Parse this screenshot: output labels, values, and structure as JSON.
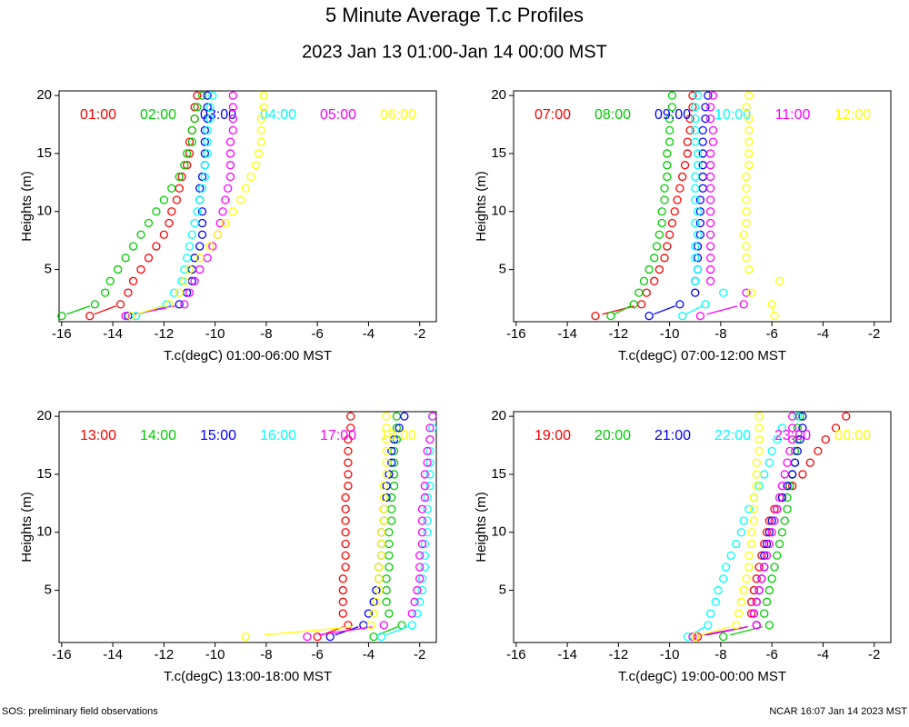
{
  "title": "5 Minute Average T.c Profiles",
  "subtitle": "2023 Jan 13 01:00-Jan 14 00:00 MST",
  "footer_left": "SOS: preliminary field observations",
  "footer_right": "NCAR 16:07 Jan 14 2023 MST",
  "chart_data": [
    {
      "type": "scatter",
      "xlabel": "T.c(degC) 01:00-06:00 MST",
      "ylabel": "Heights (m)",
      "xlim": [
        -16.1,
        -1.35
      ],
      "ylim": [
        0.5,
        20.4
      ],
      "xticks": [
        -16,
        -14,
        -12,
        -10,
        -8,
        -6,
        -4,
        -2
      ],
      "yticks": [
        5,
        10,
        15,
        20
      ],
      "y": [
        1,
        2,
        3,
        4,
        5,
        6,
        7,
        8,
        9,
        10,
        11,
        12,
        13,
        14,
        15,
        16,
        17,
        18,
        19,
        20
      ],
      "series": [
        {
          "name": "01:00",
          "color": "#ff0000",
          "x": [
            -14.9,
            -13.7,
            -13.4,
            -13.2,
            -12.9,
            -12.6,
            -12.3,
            -12.0,
            -11.8,
            -11.7,
            -11.5,
            -11.4,
            -11.3,
            -11.1,
            -11.0,
            -11.0,
            -10.9,
            -10.8,
            -10.8,
            -10.7
          ]
        },
        {
          "name": "02:00",
          "color": "#00cc00",
          "x": [
            -16.0,
            -14.7,
            -14.3,
            -14.1,
            -13.8,
            -13.5,
            -13.2,
            -12.9,
            -12.6,
            -12.3,
            -12.0,
            -11.7,
            -11.4,
            -11.2,
            -11.1,
            -10.9,
            -10.9,
            -10.8,
            -10.7,
            -10.5
          ]
        },
        {
          "name": "03:00",
          "color": "#0000ff",
          "x": [
            -13.4,
            -11.4,
            -11.1,
            -10.9,
            -10.9,
            -10.8,
            -10.6,
            -10.5,
            -10.5,
            -10.5,
            -10.6,
            -10.6,
            -10.5,
            -10.4,
            -10.4,
            -10.4,
            -10.4,
            -10.3,
            -10.3,
            -10.3
          ]
        },
        {
          "name": "04:00",
          "color": "#00ffff",
          "x": [
            -13.1,
            -11.9,
            -11.6,
            -11.3,
            -11.2,
            -11.1,
            -11.0,
            -10.9,
            -10.8,
            -10.7,
            -10.6,
            -10.5,
            -10.4,
            -10.4,
            -10.3,
            -10.3,
            -10.3,
            -10.2,
            -10.2,
            -10.1
          ]
        },
        {
          "name": "05:00",
          "color": "#ff00ff",
          "x": [
            -13.5,
            -11.2,
            -11.0,
            -10.8,
            -10.6,
            -10.3,
            -10.1,
            -9.9,
            -9.8,
            -9.7,
            -9.6,
            -9.5,
            -9.4,
            -9.4,
            -9.4,
            -9.4,
            -9.3,
            -9.3,
            -9.3,
            -9.3
          ]
        },
        {
          "name": "06:00",
          "color": "#ffff00",
          "x": [
            -13.3,
            -11.8,
            -11.4,
            -11.2,
            -11.0,
            -10.6,
            -10.2,
            -9.9,
            -9.6,
            -9.3,
            -9.0,
            -8.8,
            -8.6,
            -8.4,
            -8.3,
            -8.2,
            -8.2,
            -8.2,
            -8.1,
            -8.1
          ]
        }
      ]
    },
    {
      "type": "scatter",
      "xlabel": "T.c(degC) 07:00-12:00 MST",
      "ylabel": "Heights (m)",
      "xlim": [
        -16.1,
        -1.35
      ],
      "ylim": [
        0.5,
        20.4
      ],
      "xticks": [
        -16,
        -14,
        -12,
        -10,
        -8,
        -6,
        -4,
        -2
      ],
      "yticks": [
        5,
        10,
        15,
        20
      ],
      "y": [
        1,
        2,
        3,
        4,
        5,
        6,
        7,
        8,
        9,
        10,
        11,
        12,
        13,
        14,
        15,
        16,
        17,
        18,
        19,
        20
      ],
      "series": [
        {
          "name": "07:00",
          "color": "#ff0000",
          "x": [
            -12.9,
            -11.1,
            -10.9,
            -10.6,
            -10.4,
            -10.2,
            -10.1,
            -10.0,
            -9.9,
            -9.8,
            -9.7,
            -9.6,
            -9.5,
            -9.4,
            -9.3,
            -9.3,
            -9.2,
            -9.2,
            -9.1,
            -9.1
          ]
        },
        {
          "name": "08:00",
          "color": "#00cc00",
          "x": [
            -12.3,
            -11.4,
            -11.2,
            -11.0,
            -10.8,
            -10.6,
            -10.5,
            -10.4,
            -10.3,
            -10.3,
            -10.2,
            -10.2,
            -10.1,
            -10.1,
            -10.1,
            -10.0,
            -10.0,
            -10.0,
            -9.9,
            -9.9
          ]
        },
        {
          "name": "09:00",
          "color": "#0000ff",
          "x": [
            -10.8,
            -9.6,
            -9.0,
            -9.0,
            -8.9,
            -8.9,
            -8.9,
            -8.8,
            -8.8,
            -8.8,
            -8.8,
            -8.7,
            -8.7,
            -8.7,
            -8.7,
            -8.7,
            -8.7,
            -8.6,
            -8.6,
            -8.5
          ]
        },
        {
          "name": "10:00",
          "color": "#00ffff",
          "x": [
            -9.5,
            -8.6,
            -7.9,
            -9.0,
            -8.9,
            -9.0,
            -9.0,
            -8.9,
            -9.0,
            -8.9,
            -9.0,
            -9.0,
            -9.0,
            -8.9,
            -8.9,
            -9.0,
            -9.0,
            -9.0,
            -9.0,
            -8.9
          ]
        },
        {
          "name": "11:00",
          "color": "#ff00ff",
          "x": [
            -8.8,
            -7.1,
            -7.0,
            -8.4,
            -8.4,
            -8.4,
            -8.4,
            -8.4,
            -8.4,
            -8.4,
            -8.4,
            -8.4,
            -8.4,
            -8.4,
            -8.4,
            -8.3,
            -8.3,
            -8.4,
            -8.4,
            -8.3
          ]
        },
        {
          "name": "12:00",
          "color": "#ffff00",
          "x": [
            -5.9,
            -6.0,
            -6.8,
            -5.7,
            -6.9,
            -7.0,
            -7.0,
            -7.1,
            -7.0,
            -7.0,
            -7.0,
            -7.0,
            -7.0,
            -6.9,
            -6.9,
            -6.9,
            -6.9,
            -6.9,
            -7.0,
            -6.9
          ]
        }
      ]
    },
    {
      "type": "scatter",
      "xlabel": "T.c(degC) 13:00-18:00 MST",
      "ylabel": "Heights (m)",
      "xlim": [
        -16.1,
        -1.35
      ],
      "ylim": [
        0.5,
        20.4
      ],
      "xticks": [
        -16,
        -14,
        -12,
        -10,
        -8,
        -6,
        -4,
        -2
      ],
      "yticks": [
        5,
        10,
        15,
        20
      ],
      "y": [
        1,
        2,
        3,
        4,
        5,
        6,
        7,
        8,
        9,
        10,
        11,
        12,
        13,
        14,
        15,
        16,
        17,
        18,
        19,
        20
      ],
      "series": [
        {
          "name": "13:00",
          "color": "#ff0000",
          "x": [
            -6.0,
            -4.8,
            -5.0,
            -5.0,
            -5.0,
            -5.0,
            -4.9,
            -4.9,
            -4.9,
            -4.9,
            -4.9,
            -4.9,
            -4.9,
            -4.8,
            -4.8,
            -4.8,
            -4.8,
            -4.8,
            -4.7,
            -4.7
          ]
        },
        {
          "name": "14:00",
          "color": "#00cc00",
          "x": [
            -3.8,
            -2.7,
            -3.2,
            -3.3,
            -3.3,
            -3.3,
            -3.2,
            -3.2,
            -3.2,
            -3.2,
            -3.1,
            -3.1,
            -3.1,
            -3.0,
            -3.0,
            -3.0,
            -3.0,
            -2.9,
            -2.9,
            -2.9
          ]
        },
        {
          "name": "15:00",
          "color": "#0000ff",
          "x": [
            -5.5,
            -4.2,
            -4.0,
            -3.8,
            -3.7,
            -3.6,
            -3.6,
            -3.5,
            -3.5,
            -3.5,
            -3.4,
            -3.4,
            -3.3,
            -3.3,
            -3.2,
            -3.1,
            -3.1,
            -3.0,
            -2.8,
            -2.6
          ]
        },
        {
          "name": "16:00",
          "color": "#00ffff",
          "x": [
            -3.5,
            -2.3,
            -2.1,
            -2.0,
            -1.9,
            -1.9,
            -1.8,
            -1.8,
            -1.8,
            -1.7,
            -1.7,
            -1.7,
            -1.7,
            -1.6,
            -1.6,
            -1.6,
            -1.6,
            -1.6,
            -1.5,
            -1.5
          ]
        },
        {
          "name": "17:00",
          "color": "#ff00ff",
          "x": [
            -6.4,
            -3.4,
            -2.3,
            -2.2,
            -2.1,
            -2.0,
            -2.0,
            -2.0,
            -1.9,
            -1.9,
            -1.9,
            -1.9,
            -1.8,
            -1.8,
            -1.8,
            -1.7,
            -1.7,
            -1.6,
            -1.6,
            -1.5
          ]
        },
        {
          "name": "18:00",
          "color": "#ffff00",
          "x": [
            -8.8,
            -3.9,
            -3.8,
            -3.7,
            -3.6,
            -3.6,
            -3.6,
            -3.5,
            -3.5,
            -3.5,
            -3.4,
            -3.4,
            -3.4,
            -3.4,
            -3.3,
            -3.3,
            -3.3,
            -3.3,
            -3.3,
            -3.3
          ]
        }
      ]
    },
    {
      "type": "scatter",
      "xlabel": "T.c(degC) 19:00-00:00 MST",
      "ylabel": "Heights (m)",
      "xlim": [
        -16.1,
        -1.35
      ],
      "ylim": [
        0.5,
        20.4
      ],
      "xticks": [
        -16,
        -14,
        -12,
        -10,
        -8,
        -6,
        -4,
        -2
      ],
      "yticks": [
        5,
        10,
        15,
        20
      ],
      "y": [
        1,
        2,
        3,
        4,
        5,
        6,
        7,
        8,
        9,
        10,
        11,
        12,
        13,
        14,
        15,
        16,
        17,
        18,
        19,
        20
      ],
      "series": [
        {
          "name": "19:00",
          "color": "#ff0000",
          "x": [
            -8.9,
            -6.6,
            -6.8,
            -6.8,
            -6.7,
            -6.6,
            -6.5,
            -6.4,
            -6.3,
            -6.2,
            -6.1,
            -5.9,
            -5.6,
            -5.2,
            -4.8,
            -4.5,
            -4.2,
            -3.9,
            -3.5,
            -3.1
          ]
        },
        {
          "name": "20:00",
          "color": "#00cc00",
          "x": [
            -7.9,
            -6.1,
            -6.3,
            -6.2,
            -6.1,
            -6.0,
            -5.9,
            -5.8,
            -5.7,
            -5.6,
            -5.5,
            -5.4,
            -5.4,
            -5.3,
            -5.2,
            -5.1,
            -5.1,
            -5.0,
            -5.0,
            -4.9
          ]
        },
        {
          "name": "21:00",
          "color": "#0000ff",
          "x": [
            -9.0,
            -6.6,
            -6.7,
            -6.6,
            -6.5,
            -6.4,
            -6.3,
            -6.3,
            -6.2,
            -6.1,
            -6.0,
            -5.8,
            -5.6,
            -5.4,
            -5.2,
            -5.1,
            -5.0,
            -4.9,
            -4.8,
            -4.8
          ]
        },
        {
          "name": "22:00",
          "color": "#00ffff",
          "x": [
            -9.3,
            -8.5,
            -8.4,
            -8.2,
            -8.1,
            -7.9,
            -7.8,
            -7.6,
            -7.4,
            -7.2,
            -7.1,
            -6.9,
            -6.7,
            -6.5,
            -6.3,
            -6.1,
            -6.0,
            -5.8,
            -5.6,
            -5.0
          ]
        },
        {
          "name": "23:00",
          "color": "#ff00ff",
          "x": [
            -9.1,
            -6.6,
            -6.7,
            -6.6,
            -6.5,
            -6.4,
            -6.3,
            -6.2,
            -6.1,
            -6.0,
            -5.9,
            -5.8,
            -5.7,
            -5.6,
            -5.5,
            -5.4,
            -5.3,
            -5.2,
            -5.2,
            -5.2
          ]
        },
        {
          "name": "00:00",
          "color": "#ffff00",
          "x": [
            -9.0,
            -7.4,
            -7.3,
            -7.2,
            -7.1,
            -7.0,
            -6.9,
            -6.9,
            -6.8,
            -6.8,
            -6.7,
            -6.7,
            -6.7,
            -6.6,
            -6.6,
            -6.6,
            -6.5,
            -6.5,
            -6.5,
            -6.5
          ]
        }
      ]
    }
  ]
}
